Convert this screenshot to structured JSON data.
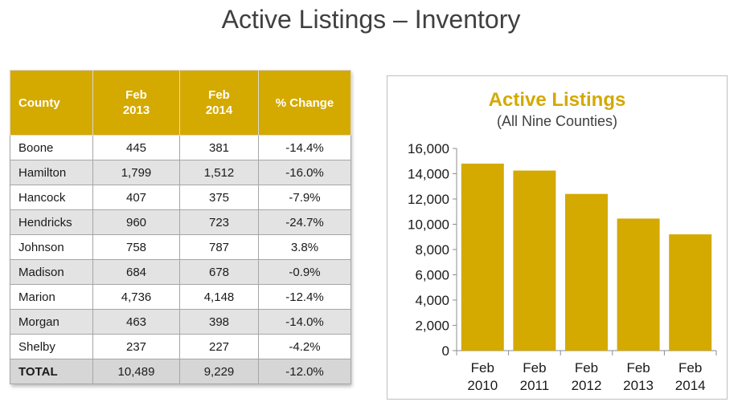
{
  "page": {
    "title": "Active Listings – Inventory"
  },
  "table": {
    "headers": [
      {
        "line1": "County",
        "line2": ""
      },
      {
        "line1": "Feb",
        "line2": "2013"
      },
      {
        "line1": "Feb",
        "line2": "2014"
      },
      {
        "line1": "% Change",
        "line2": ""
      }
    ],
    "rows": [
      {
        "county": "Boone",
        "feb2013": "445",
        "feb2014": "381",
        "change": "-14.4%"
      },
      {
        "county": "Hamilton",
        "feb2013": "1,799",
        "feb2014": "1,512",
        "change": "-16.0%"
      },
      {
        "county": "Hancock",
        "feb2013": "407",
        "feb2014": "375",
        "change": "-7.9%"
      },
      {
        "county": "Hendricks",
        "feb2013": "960",
        "feb2014": "723",
        "change": "-24.7%"
      },
      {
        "county": "Johnson",
        "feb2013": "758",
        "feb2014": "787",
        "change": "3.8%"
      },
      {
        "county": "Madison",
        "feb2013": "684",
        "feb2014": "678",
        "change": "-0.9%"
      },
      {
        "county": "Marion",
        "feb2013": "4,736",
        "feb2014": "4,148",
        "change": "-12.4%"
      },
      {
        "county": "Morgan",
        "feb2013": "463",
        "feb2014": "398",
        "change": "-14.0%"
      },
      {
        "county": "Shelby",
        "feb2013": "237",
        "feb2014": "227",
        "change": "-4.2%"
      }
    ],
    "total": {
      "county": "TOTAL",
      "feb2013": "10,489",
      "feb2014": "9,229",
      "change": "-12.0%"
    }
  },
  "colors": {
    "accent": "#d4a900",
    "bar": "#d4a900",
    "header_text": "#ffffff"
  },
  "chart_data": {
    "type": "bar",
    "title": "Active Listings",
    "subtitle": "(All Nine Counties)",
    "categories": [
      [
        "Feb",
        "2010"
      ],
      [
        "Feb",
        "2011"
      ],
      [
        "Feb",
        "2012"
      ],
      [
        "Feb",
        "2013"
      ],
      [
        "Feb",
        "2014"
      ]
    ],
    "values": [
      14800,
      14250,
      12400,
      10450,
      9200
    ],
    "ylim": [
      0,
      16000
    ],
    "yticks": [
      0,
      2000,
      4000,
      6000,
      8000,
      10000,
      12000,
      14000,
      16000
    ],
    "ytick_labels": [
      "0",
      "2,000",
      "4,000",
      "6,000",
      "8,000",
      "10,000",
      "12,000",
      "14,000",
      "16,000"
    ],
    "xlabel": "",
    "ylabel": "",
    "grid": false,
    "legend": false
  }
}
